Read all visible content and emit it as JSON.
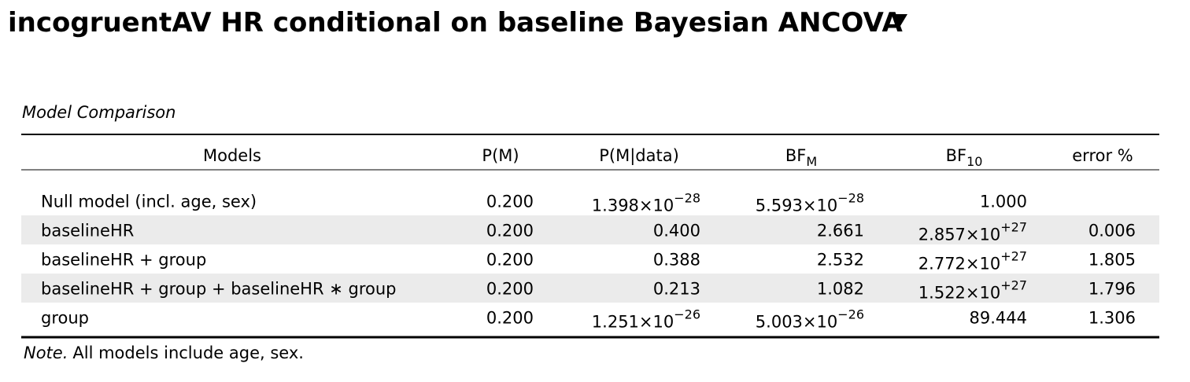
{
  "title": "incogruentAV HR conditional on baseline Bayesian ANCOVA",
  "table": {
    "caption": "Model Comparison",
    "columns": [
      {
        "text": "Models"
      },
      {
        "text": "P(M)"
      },
      {
        "text": "P(M|data)"
      },
      {
        "text": "BF",
        "sub": "M"
      },
      {
        "text": "BF",
        "sub": "10"
      },
      {
        "text": "error %"
      }
    ],
    "rows": [
      [
        {
          "text": "Null model (incl. age, sex)"
        },
        {
          "text": "0.200"
        },
        {
          "text": "1.398×10",
          "sup": "−28"
        },
        {
          "text": "5.593×10",
          "sup": "−28"
        },
        {
          "text": "1.000"
        },
        null
      ],
      [
        {
          "text": "baselineHR"
        },
        {
          "text": "0.200"
        },
        {
          "text": "0.400"
        },
        {
          "text": "2.661"
        },
        {
          "text": "2.857×10",
          "sup": "+27"
        },
        {
          "text": "0.006"
        }
      ],
      [
        {
          "text": "baselineHR + group"
        },
        {
          "text": "0.200"
        },
        {
          "text": "0.388"
        },
        {
          "text": "2.532"
        },
        {
          "text": "2.772×10",
          "sup": "+27"
        },
        {
          "text": "1.805"
        }
      ],
      [
        {
          "text": "baselineHR + group + baselineHR ∗ group"
        },
        {
          "text": "0.200"
        },
        {
          "text": "0.213"
        },
        {
          "text": "1.082"
        },
        {
          "text": "1.522×10",
          "sup": "+27"
        },
        {
          "text": "1.796"
        }
      ],
      [
        {
          "text": "group"
        },
        {
          "text": "0.200"
        },
        {
          "text": "1.251×10",
          "sup": "−26"
        },
        {
          "text": "5.003×10",
          "sup": "−26"
        },
        {
          "text": "89.444"
        },
        {
          "text": "1.306"
        }
      ]
    ],
    "note": {
      "label": "Note.",
      "text": "All models include age, sex."
    }
  }
}
